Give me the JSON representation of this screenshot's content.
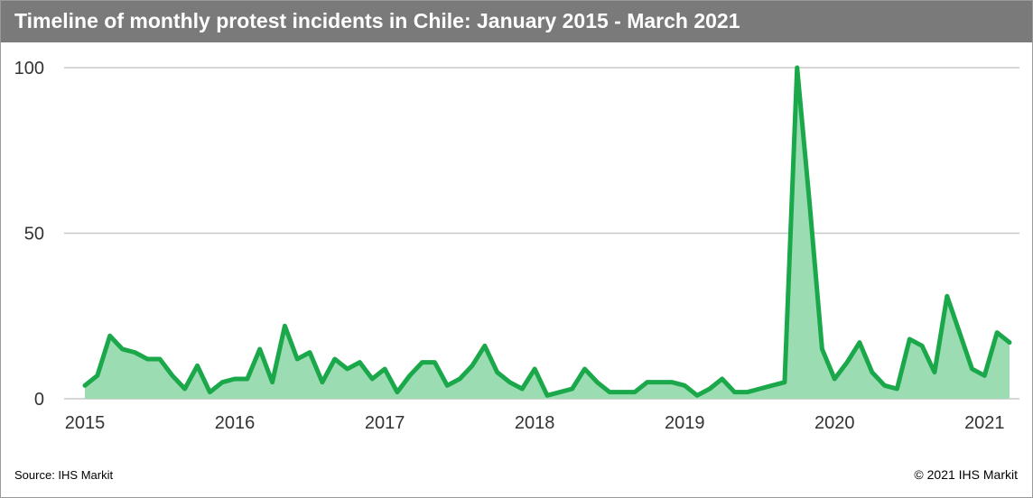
{
  "chart_data": {
    "type": "area",
    "title": "Timeline of monthly protest incidents in Chile: January 2015 - March 2021",
    "xlabel": "",
    "ylabel": "",
    "x_start": "2015-01",
    "x": [
      "2015-01",
      "2015-02",
      "2015-03",
      "2015-04",
      "2015-05",
      "2015-06",
      "2015-07",
      "2015-08",
      "2015-09",
      "2015-10",
      "2015-11",
      "2015-12",
      "2016-01",
      "2016-02",
      "2016-03",
      "2016-04",
      "2016-05",
      "2016-06",
      "2016-07",
      "2016-08",
      "2016-09",
      "2016-10",
      "2016-11",
      "2016-12",
      "2017-01",
      "2017-02",
      "2017-03",
      "2017-04",
      "2017-05",
      "2017-06",
      "2017-07",
      "2017-08",
      "2017-09",
      "2017-10",
      "2017-11",
      "2017-12",
      "2018-01",
      "2018-02",
      "2018-03",
      "2018-04",
      "2018-05",
      "2018-06",
      "2018-07",
      "2018-08",
      "2018-09",
      "2018-10",
      "2018-11",
      "2018-12",
      "2019-01",
      "2019-02",
      "2019-03",
      "2019-04",
      "2019-05",
      "2019-06",
      "2019-07",
      "2019-08",
      "2019-09",
      "2019-10",
      "2019-11",
      "2019-12",
      "2020-01",
      "2020-02",
      "2020-03",
      "2020-04",
      "2020-05",
      "2020-06",
      "2020-07",
      "2020-08",
      "2020-09",
      "2020-10",
      "2020-11",
      "2020-12",
      "2021-01",
      "2021-02",
      "2021-03"
    ],
    "values": [
      4,
      7,
      19,
      15,
      14,
      12,
      12,
      7,
      3,
      10,
      2,
      5,
      6,
      6,
      15,
      5,
      22,
      12,
      14,
      5,
      12,
      9,
      11,
      6,
      9,
      2,
      7,
      11,
      11,
      4,
      6,
      10,
      16,
      8,
      5,
      3,
      9,
      1,
      2,
      3,
      9,
      5,
      2,
      2,
      2,
      5,
      5,
      5,
      4,
      1,
      3,
      6,
      2,
      2,
      3,
      4,
      5,
      100,
      59,
      15,
      6,
      11,
      17,
      8,
      4,
      3,
      18,
      16,
      8,
      31,
      20,
      9,
      7,
      20,
      17
    ],
    "ylim": [
      0,
      100
    ],
    "yticks": [
      0,
      50,
      100
    ],
    "xticks": [
      "2015",
      "2016",
      "2017",
      "2018",
      "2019",
      "2020",
      "2021"
    ],
    "grid": true,
    "legend": "none",
    "line_color": "#1aa84a",
    "fill_color": "#9bdcb3",
    "grid_color": "#c8c8c8"
  },
  "footer": {
    "source": "Source: IHS Markit",
    "copyright": "© 2021 IHS Markit"
  }
}
